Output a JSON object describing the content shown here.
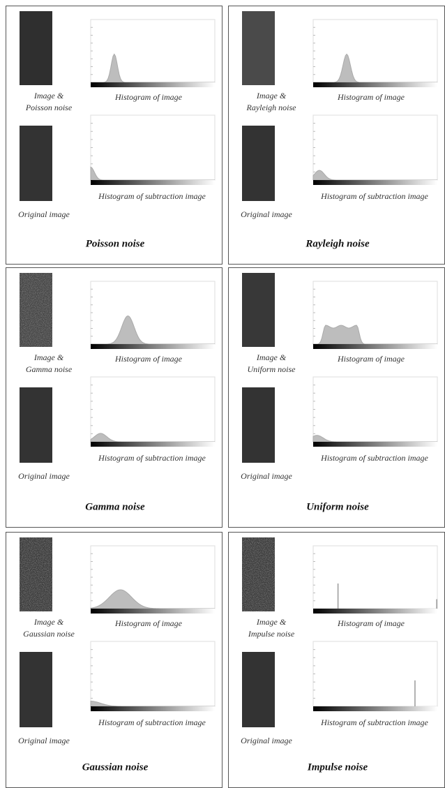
{
  "panels": [
    {
      "title": "Poisson noise",
      "image_label": [
        "Image &",
        "Poisson noise"
      ],
      "histogram_label": "Histogram of image",
      "original_label": "Original image",
      "subtraction_label": "Histogram of subtraction image"
    },
    {
      "title": "Rayleigh noise",
      "image_label": [
        "Image &",
        "Rayleigh noise"
      ],
      "histogram_label": "Histogram of image",
      "original_label": "Original image",
      "subtraction_label": "Histogram of subtraction image"
    },
    {
      "title": "Gamma noise",
      "image_label": [
        "Image &",
        "Gamma noise"
      ],
      "histogram_label": "Histogram of image",
      "original_label": "Original image",
      "subtraction_label": "Histogram of subtraction image"
    },
    {
      "title": "Uniform noise",
      "image_label": [
        "Image &",
        "Uniform noise"
      ],
      "histogram_label": "Histogram of image",
      "original_label": "Original image",
      "subtraction_label": "Histogram of subtraction image"
    },
    {
      "title": "Gaussian noise",
      "image_label": [
        "Image &",
        "Gaussian noise"
      ],
      "histogram_label": "Histogram of image",
      "original_label": "Original image",
      "subtraction_label": "Histogram of subtraction image"
    },
    {
      "title": "Impulse noise",
      "image_label": [
        "Image &",
        "Impulse noise"
      ],
      "histogram_label": "Histogram of image",
      "original_label": "Original image",
      "subtraction_label": "Histogram of subtraction image"
    }
  ]
}
